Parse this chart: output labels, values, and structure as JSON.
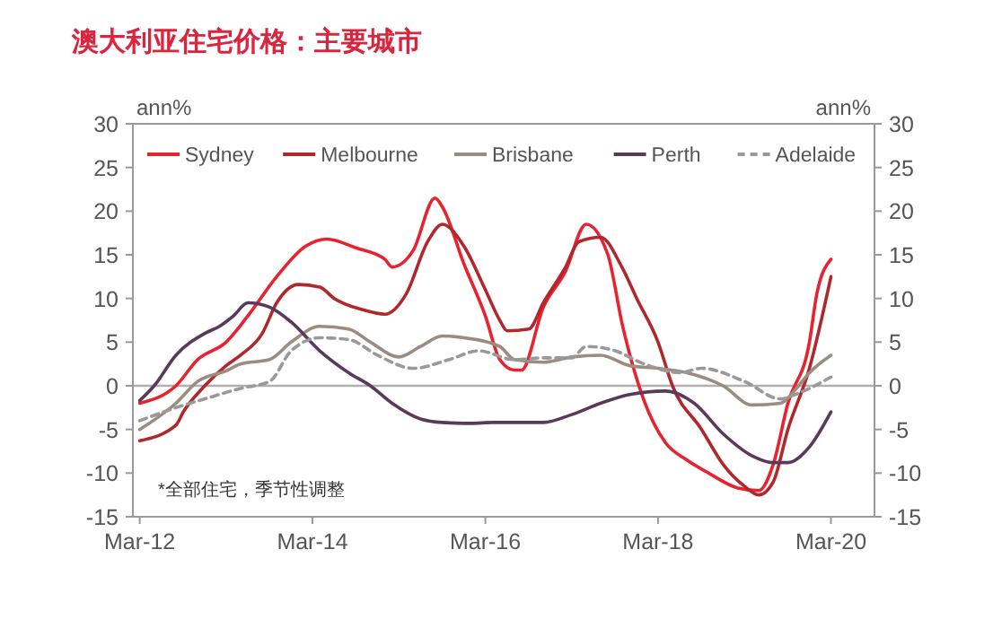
{
  "chart_data": {
    "type": "line",
    "title": "澳大利亚住宅价格：主要城市",
    "ylabel": "ann%",
    "y2label": "ann%",
    "annotations": [
      "*全部住宅，季节性调整"
    ],
    "xlim": [
      "2012-02",
      "2020-09"
    ],
    "xticks": [
      {
        "value": "2012-03",
        "label": "Mar-12"
      },
      {
        "value": "2014-03",
        "label": "Mar-14"
      },
      {
        "value": "2016-03",
        "label": "Mar-16"
      },
      {
        "value": "2018-03",
        "label": "Mar-18"
      },
      {
        "value": "2020-03",
        "label": "Mar-20"
      }
    ],
    "ylim": [
      -15,
      30
    ],
    "yticks": [
      -15,
      -10,
      -5,
      0,
      5,
      10,
      15,
      20,
      25,
      30
    ],
    "y2lim": [
      -15,
      30
    ],
    "y2ticks": [
      -15,
      -10,
      -5,
      0,
      5,
      10,
      15,
      20,
      25,
      30
    ],
    "grid": false,
    "legend": "top",
    "marker": "none",
    "ref_lines": [
      {
        "axis": "y",
        "value": 0,
        "color": "#b0b0b0"
      }
    ],
    "series": [
      {
        "name": "Sydney",
        "color": "#e8222e",
        "line_style": "solid",
        "x": [
          "2012-03",
          "2012-08",
          "2012-11",
          "2013-03",
          "2013-06",
          "2013-10",
          "2014-02",
          "2014-05",
          "2014-09",
          "2015-01",
          "2015-02",
          "2015-05",
          "2015-08",
          "2015-09",
          "2015-12",
          "2016-03",
          "2016-05",
          "2016-07",
          "2016-08",
          "2016-11",
          "2017-02",
          "2017-05",
          "2017-08",
          "2017-10",
          "2018-01",
          "2018-04",
          "2018-07",
          "2018-10",
          "2019-02",
          "2019-05",
          "2019-07",
          "2019-09",
          "2019-12",
          "2020-01",
          "2020-03"
        ],
        "values": [
          -2,
          0,
          3,
          5,
          8,
          12.5,
          16,
          16.8,
          15.8,
          14.5,
          13.6,
          15.5,
          21.5,
          20.5,
          14,
          8,
          3,
          1.8,
          1.8,
          9,
          13,
          18.5,
          15,
          7,
          -1.7,
          -6.5,
          -8.5,
          -10,
          -11.7,
          -12,
          -9,
          -2,
          5,
          10.5,
          14.5
        ]
      },
      {
        "name": "Melbourne",
        "color": "#b0282c",
        "line_style": "solid",
        "x": [
          "2012-03",
          "2012-08",
          "2012-09",
          "2012-12",
          "2013-03",
          "2013-05",
          "2013-08",
          "2013-10",
          "2014-01",
          "2014-04",
          "2014-06",
          "2014-10",
          "2015-01",
          "2015-04",
          "2015-07",
          "2015-09",
          "2015-12",
          "2016-03",
          "2016-05",
          "2016-06",
          "2016-09",
          "2016-11",
          "2017-02",
          "2017-04",
          "2017-07",
          "2017-10",
          "2017-12",
          "2018-03",
          "2018-05",
          "2018-09",
          "2018-12",
          "2019-03",
          "2019-05",
          "2019-07",
          "2019-09",
          "2019-12",
          "2020-03"
        ],
        "values": [
          -6.3,
          -4.5,
          -3,
          0,
          2.3,
          3.5,
          6,
          9.5,
          11.6,
          11.3,
          10,
          8.7,
          8.2,
          10.5,
          16.5,
          18.5,
          16,
          11,
          7.5,
          6.3,
          6.5,
          9.5,
          13.5,
          16.5,
          17,
          13.5,
          10,
          5,
          0,
          -5,
          -9,
          -11.5,
          -12.5,
          -11,
          -5,
          2,
          12.5
        ]
      },
      {
        "name": "Brisbane",
        "color": "#9c8c80",
        "line_style": "solid",
        "x": [
          "2012-03",
          "2012-08",
          "2012-11",
          "2013-03",
          "2013-05",
          "2013-09",
          "2013-12",
          "2014-04",
          "2014-08",
          "2014-11",
          "2015-03",
          "2015-06",
          "2015-09",
          "2015-12",
          "2016-05",
          "2016-07",
          "2016-11",
          "2017-03",
          "2017-07",
          "2017-11",
          "2018-03",
          "2018-07",
          "2018-12",
          "2019-04",
          "2019-08",
          "2019-10",
          "2019-12",
          "2020-03"
        ],
        "values": [
          -5,
          -2,
          0.5,
          1.7,
          2.5,
          3,
          5,
          6.8,
          6.5,
          5,
          3.3,
          4.5,
          5.7,
          5.5,
          4.5,
          3,
          2.7,
          3.3,
          3.5,
          2.3,
          2,
          1.5,
          0,
          -2.2,
          -2,
          -0.5,
          1.5,
          3.5
        ]
      },
      {
        "name": "Perth",
        "color": "#5a3a5a",
        "line_style": "solid",
        "x": [
          "2012-03",
          "2012-05",
          "2012-08",
          "2012-12",
          "2013-02",
          "2013-04",
          "2013-06",
          "2013-09",
          "2013-12",
          "2014-04",
          "2014-08",
          "2014-11",
          "2015-02",
          "2015-06",
          "2015-09",
          "2016-01",
          "2016-04",
          "2016-11",
          "2017-03",
          "2017-07",
          "2017-11",
          "2018-04",
          "2018-08",
          "2018-12",
          "2019-04",
          "2019-07",
          "2019-09",
          "2019-12",
          "2020-03"
        ],
        "values": [
          -1.7,
          0,
          3.5,
          6,
          6.8,
          8,
          9.5,
          9,
          7.3,
          4,
          1.5,
          0,
          -2,
          -3.8,
          -4.2,
          -4.3,
          -4.2,
          -4.2,
          -3.3,
          -2,
          -1,
          -0.6,
          -2,
          -5.5,
          -8,
          -8.8,
          -8.8,
          -7,
          -3
        ]
      },
      {
        "name": "Adelaide",
        "color": "#999999",
        "line_style": "dashed",
        "x": [
          "2012-03",
          "2012-08",
          "2012-12",
          "2013-05",
          "2013-09",
          "2013-12",
          "2014-04",
          "2014-08",
          "2014-12",
          "2015-05",
          "2015-10",
          "2016-02",
          "2016-07",
          "2016-11",
          "2017-03",
          "2017-05",
          "2017-09",
          "2018-01",
          "2018-06",
          "2018-09",
          "2019-03",
          "2019-08",
          "2019-10",
          "2020-03"
        ],
        "values": [
          -4,
          -2.5,
          -1.5,
          -0.3,
          0.5,
          4,
          5.5,
          5.3,
          3.5,
          2,
          3,
          4,
          3,
          3.2,
          3.2,
          4.5,
          4,
          2.5,
          1.5,
          2,
          0.5,
          -1.5,
          -1,
          1
        ]
      }
    ]
  }
}
